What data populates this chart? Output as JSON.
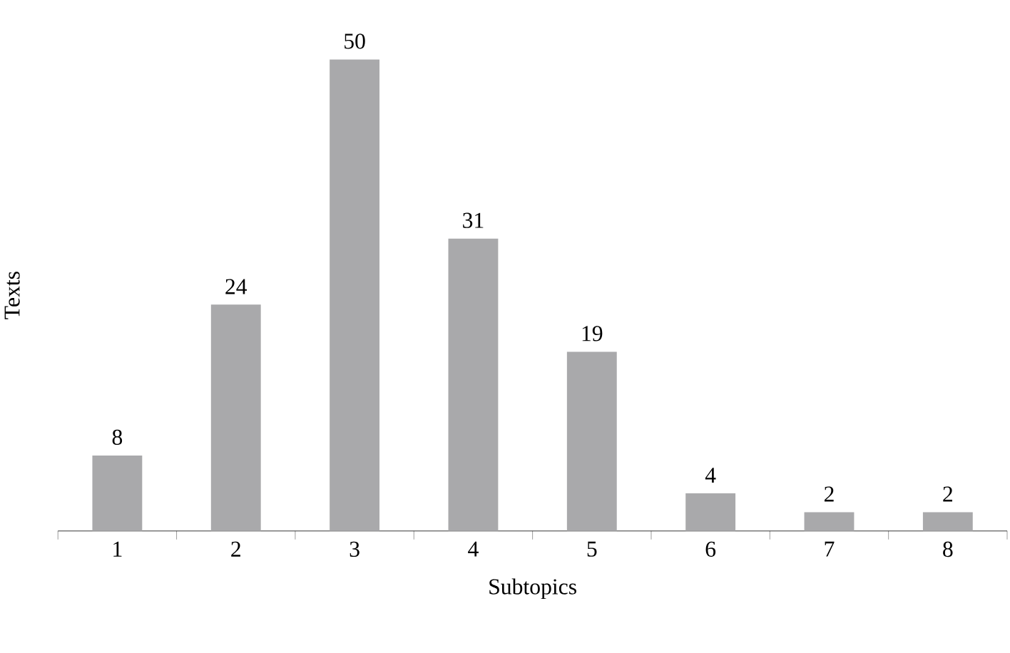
{
  "chart_data": {
    "type": "bar",
    "xlabel": "Subtopics",
    "ylabel": "Texts",
    "categories": [
      "1",
      "2",
      "3",
      "4",
      "5",
      "6",
      "7",
      "8"
    ],
    "values": [
      8,
      24,
      50,
      31,
      19,
      4,
      2,
      2
    ],
    "color": "#a9a9ab",
    "data_labels": true
  }
}
